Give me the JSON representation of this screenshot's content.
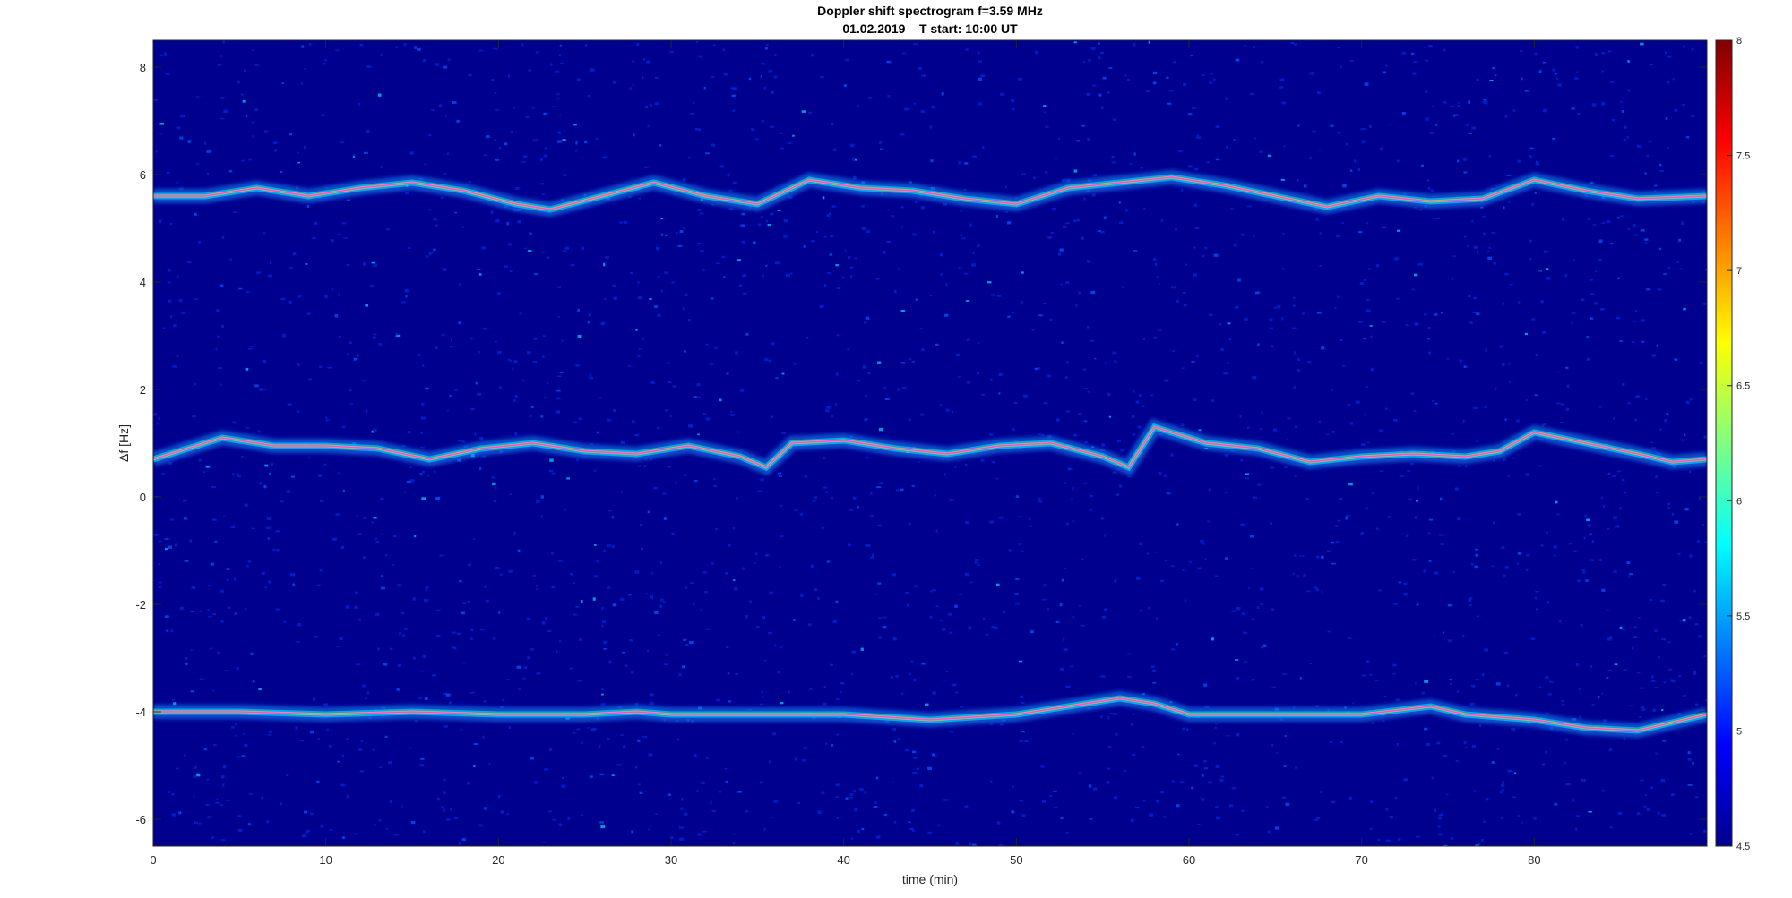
{
  "chart_data": {
    "type": "heatmap",
    "title": "Doppler shift spectrogram f=3.59 MHz",
    "subtitle": "01.02.2019    T start: 10:00 UT",
    "xlabel": "time (min)",
    "ylabel": "Δf [Hz]",
    "xlim": [
      0,
      90
    ],
    "ylim": [
      -6.5,
      8.5
    ],
    "x_ticks": [
      0,
      10,
      20,
      30,
      40,
      50,
      60,
      70,
      80
    ],
    "y_ticks": [
      -6,
      -4,
      -2,
      0,
      2,
      4,
      6,
      8
    ],
    "colormap": "jet",
    "colorbar": {
      "range": [
        4.5,
        8
      ],
      "ticks": [
        4.5,
        5,
        5.5,
        6,
        6.5,
        7,
        7.5,
        8
      ],
      "placement": "right"
    },
    "background_color": "#00008f",
    "grid": false,
    "series": [
      {
        "trace": "upper",
        "x": [
          0,
          3,
          6,
          9,
          12,
          15,
          18,
          21,
          23,
          26,
          29,
          32,
          35,
          38,
          41,
          44,
          47,
          50,
          53,
          56,
          59,
          62,
          65,
          68,
          71,
          74,
          77,
          80,
          83,
          86,
          90
        ],
        "y": [
          5.6,
          5.6,
          5.75,
          5.6,
          5.75,
          5.85,
          5.7,
          5.45,
          5.35,
          5.6,
          5.85,
          5.6,
          5.45,
          5.9,
          5.75,
          5.7,
          5.55,
          5.45,
          5.75,
          5.85,
          5.95,
          5.8,
          5.6,
          5.4,
          5.6,
          5.5,
          5.55,
          5.9,
          5.7,
          5.55,
          5.6
        ]
      },
      {
        "trace": "middle",
        "x": [
          0,
          2,
          4,
          7,
          10,
          13,
          16,
          19,
          22,
          25,
          28,
          31,
          34,
          35.5,
          37,
          40,
          43,
          46,
          49,
          52,
          55,
          56.5,
          58,
          61,
          64,
          67,
          70,
          73,
          76,
          78,
          80,
          83,
          86,
          88,
          90
        ],
        "y": [
          0.7,
          0.9,
          1.1,
          0.95,
          0.95,
          0.9,
          0.7,
          0.9,
          1.0,
          0.85,
          0.8,
          0.95,
          0.75,
          0.55,
          1.0,
          1.05,
          0.9,
          0.8,
          0.95,
          1.0,
          0.75,
          0.55,
          1.3,
          1.0,
          0.9,
          0.65,
          0.75,
          0.8,
          0.75,
          0.85,
          1.2,
          1.0,
          0.8,
          0.65,
          0.7
        ]
      },
      {
        "trace": "lower",
        "x": [
          0,
          5,
          10,
          15,
          20,
          25,
          28,
          30,
          35,
          40,
          45,
          50,
          54,
          56,
          58,
          60,
          65,
          70,
          74,
          76,
          80,
          83,
          86,
          88,
          90
        ],
        "y": [
          -4.0,
          -4.0,
          -4.05,
          -4.0,
          -4.05,
          -4.05,
          -4.0,
          -4.05,
          -4.05,
          -4.05,
          -4.15,
          -4.05,
          -3.85,
          -3.75,
          -3.85,
          -4.05,
          -4.05,
          -4.05,
          -3.9,
          -4.05,
          -4.15,
          -4.3,
          -4.35,
          -4.2,
          -4.05
        ]
      }
    ]
  }
}
